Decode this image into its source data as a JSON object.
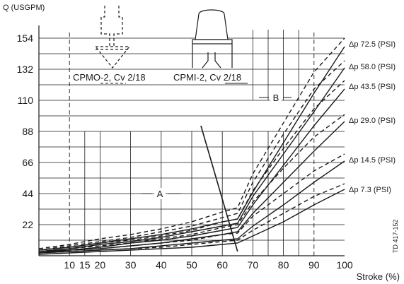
{
  "chart_data": {
    "type": "line",
    "ylabel": "Q (USGPM)",
    "xlabel": "Stroke (%)",
    "x_ticks": [
      10,
      15,
      20,
      30,
      40,
      50,
      60,
      70,
      80,
      90,
      100
    ],
    "y_ticks": [
      22,
      44,
      66,
      88,
      110,
      132,
      154
    ],
    "xlim": [
      0,
      100
    ],
    "ylim": [
      0,
      160
    ],
    "grid": true,
    "x": [
      0,
      10,
      20,
      30,
      40,
      50,
      60,
      65,
      70,
      80,
      90,
      100
    ],
    "series": [
      {
        "name": "Δp 72.5 (PSI)",
        "style": "dashed",
        "values": [
          5,
          8,
          12,
          15,
          19,
          24,
          31,
          34,
          58,
          94,
          130,
          154
        ]
      },
      {
        "name": "Δp 72.5 (PSI)",
        "style": "solid",
        "values": [
          4,
          6,
          9,
          12,
          15,
          19,
          24,
          26,
          45,
          80,
          115,
          148
        ]
      },
      {
        "name": "Δp 58.0 (PSI)",
        "style": "dashed",
        "values": [
          4,
          7,
          10,
          13,
          17,
          21,
          27,
          30,
          52,
          86,
          118,
          138
        ]
      },
      {
        "name": "Δp 58.0 (PSI)",
        "style": "solid",
        "values": [
          3,
          5,
          8,
          10,
          13,
          17,
          21,
          23,
          42,
          72,
          102,
          133
        ]
      },
      {
        "name": "Δp 43.5 (PSI)",
        "style": "dashed",
        "values": [
          4,
          6,
          9,
          11,
          14,
          18,
          24,
          26,
          46,
          76,
          104,
          124
        ]
      },
      {
        "name": "Δp 43.5 (PSI)",
        "style": "solid",
        "values": [
          3,
          4,
          6,
          9,
          11,
          14,
          18,
          20,
          36,
          64,
          92,
          118
        ]
      },
      {
        "name": "Δp 29.0 (PSI)",
        "style": "dashed",
        "values": [
          3,
          5,
          7,
          9,
          12,
          15,
          20,
          22,
          38,
          62,
          84,
          100
        ]
      },
      {
        "name": "Δp 29.0 (PSI)",
        "style": "solid",
        "values": [
          2,
          4,
          5,
          7,
          9,
          12,
          15,
          17,
          30,
          52,
          74,
          95
        ]
      },
      {
        "name": "Δp 14.5 (PSI)",
        "style": "dashed",
        "values": [
          2,
          4,
          5,
          7,
          9,
          11,
          15,
          16,
          28,
          44,
          60,
          72
        ]
      },
      {
        "name": "Δp 14.5 (PSI)",
        "style": "solid",
        "values": [
          2,
          3,
          4,
          5,
          7,
          9,
          11,
          12,
          21,
          36,
          52,
          67
        ]
      },
      {
        "name": "Δp 7.3 (PSI)",
        "style": "dashed",
        "values": [
          2,
          3,
          4,
          5,
          6,
          8,
          10,
          11,
          18,
          30,
          42,
          51
        ]
      },
      {
        "name": "Δp 7.3 (PSI)",
        "style": "solid",
        "values": [
          1,
          2,
          3,
          4,
          5,
          6,
          8,
          9,
          14,
          24,
          36,
          47
        ]
      }
    ],
    "legend_placement": "right end of curves",
    "diagonal_line": {
      "from": [
        53,
        92
      ],
      "to": [
        65,
        3
      ]
    },
    "annotations": {
      "zone_a": "A",
      "zone_b": "B",
      "cpmo_caption": "CPMO-2, Cv 2/18",
      "cpmi_caption": "CPMI-2, Cv 2/18",
      "figure_code": "TD 417-152"
    }
  }
}
